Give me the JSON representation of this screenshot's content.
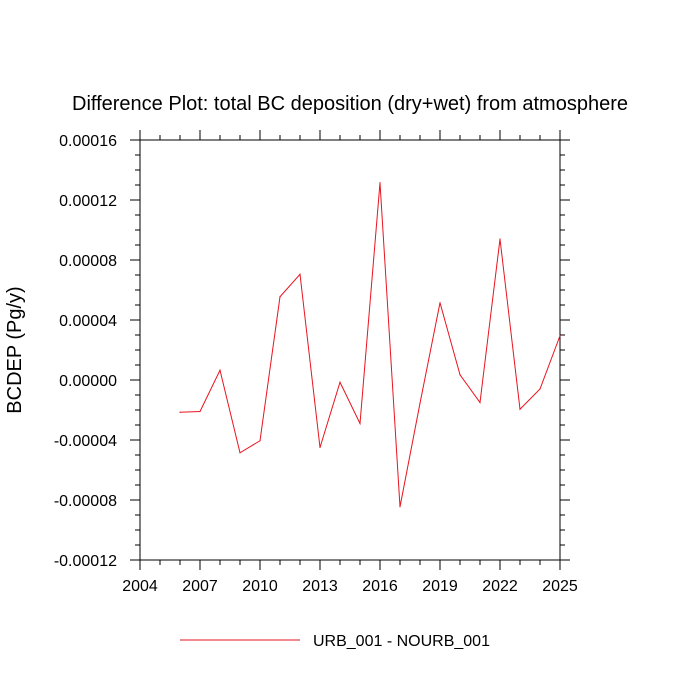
{
  "chart_data": {
    "type": "line",
    "title": "Difference Plot: total BC deposition (dry+wet) from atmosphere",
    "xlabel": "",
    "ylabel": "BCDEP  (Pg/y)",
    "xlim": [
      2004,
      2025
    ],
    "ylim": [
      -0.00012,
      0.00016
    ],
    "x_ticks": [
      "2004",
      "2007",
      "2010",
      "2013",
      "2016",
      "2019",
      "2022",
      "2025"
    ],
    "y_ticks": [
      "-0.00012",
      "-0.00008",
      "-0.00004",
      "0.00000",
      "0.00004",
      "0.00008",
      "0.00012",
      "0.00016"
    ],
    "grid": false,
    "legend_position": "bottom-center",
    "series": [
      {
        "name": "URB_001 - NOURB_001",
        "color": "#e8141e",
        "x": [
          2006,
          2007,
          2008,
          2009,
          2010,
          2011,
          2012,
          2013,
          2014,
          2015,
          2016,
          2017,
          2018,
          2019,
          2020,
          2021,
          2022,
          2023,
          2024,
          2025
        ],
        "y": [
          -2.15e-05,
          -2.1e-05,
          6.5e-06,
          -4.85e-05,
          -4.05e-05,
          5.55e-05,
          7.05e-05,
          -4.5e-05,
          -1.5e-06,
          -2.9e-05,
          0.0001315,
          -8.45e-05,
          -1.55e-05,
          5.15e-05,
          3.5e-06,
          -1.5e-05,
          9.4e-05,
          -1.95e-05,
          -6e-06,
          2.95e-05
        ]
      }
    ]
  }
}
